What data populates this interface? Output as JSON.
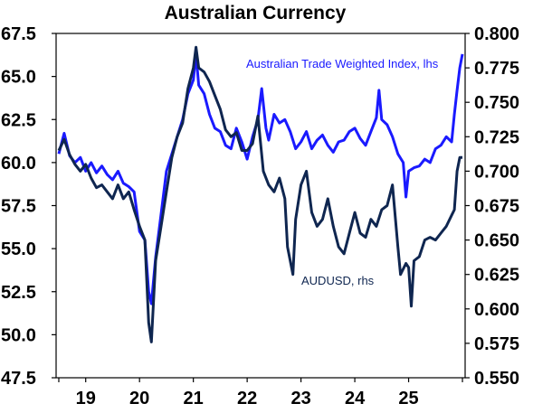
{
  "chart_data": {
    "type": "line",
    "title": "Australian Currency",
    "x_ticks": [
      "19",
      "20",
      "21",
      "22",
      "23",
      "24",
      "25"
    ],
    "y_left": {
      "min": 47.5,
      "max": 67.5,
      "ticks": [
        "47.5",
        "50.0",
        "52.5",
        "55.0",
        "57.5",
        "60.0",
        "62.5",
        "65.0",
        "67.5"
      ]
    },
    "y_right": {
      "min": 0.55,
      "max": 0.8,
      "ticks": [
        "0.550",
        "0.575",
        "0.600",
        "0.625",
        "0.650",
        "0.675",
        "0.700",
        "0.725",
        "0.750",
        "0.775",
        "0.800"
      ]
    },
    "series": [
      {
        "name": "Australian Trade Weighted Index, lhs",
        "axis": "left",
        "color": "#1a1aff",
        "points": [
          [
            2018.5,
            60.5
          ],
          [
            2018.6,
            61.7
          ],
          [
            2018.7,
            60.4
          ],
          [
            2018.8,
            60.0
          ],
          [
            2018.9,
            60.3
          ],
          [
            2019.0,
            59.5
          ],
          [
            2019.1,
            60.0
          ],
          [
            2019.2,
            59.4
          ],
          [
            2019.3,
            59.8
          ],
          [
            2019.4,
            59.3
          ],
          [
            2019.5,
            59.0
          ],
          [
            2019.6,
            59.5
          ],
          [
            2019.7,
            58.8
          ],
          [
            2019.8,
            58.6
          ],
          [
            2019.9,
            58.3
          ],
          [
            2020.0,
            56.0
          ],
          [
            2020.1,
            55.5
          ],
          [
            2020.17,
            52.5
          ],
          [
            2020.22,
            51.8
          ],
          [
            2020.3,
            54.5
          ],
          [
            2020.4,
            57.0
          ],
          [
            2020.5,
            59.5
          ],
          [
            2020.6,
            60.5
          ],
          [
            2020.7,
            61.5
          ],
          [
            2020.8,
            62.5
          ],
          [
            2020.9,
            64.0
          ],
          [
            2021.0,
            64.8
          ],
          [
            2021.05,
            66.3
          ],
          [
            2021.1,
            64.5
          ],
          [
            2021.2,
            64.0
          ],
          [
            2021.3,
            62.8
          ],
          [
            2021.4,
            62.0
          ],
          [
            2021.5,
            61.8
          ],
          [
            2021.6,
            61.0
          ],
          [
            2021.7,
            60.8
          ],
          [
            2021.8,
            62.0
          ],
          [
            2021.9,
            61.2
          ],
          [
            2022.0,
            60.2
          ],
          [
            2022.1,
            61.5
          ],
          [
            2022.2,
            62.5
          ],
          [
            2022.27,
            64.3
          ],
          [
            2022.35,
            62.0
          ],
          [
            2022.4,
            61.3
          ],
          [
            2022.5,
            62.8
          ],
          [
            2022.6,
            62.3
          ],
          [
            2022.7,
            62.5
          ],
          [
            2022.8,
            61.8
          ],
          [
            2022.9,
            60.8
          ],
          [
            2023.0,
            61.2
          ],
          [
            2023.1,
            61.8
          ],
          [
            2023.2,
            60.8
          ],
          [
            2023.3,
            61.3
          ],
          [
            2023.4,
            61.6
          ],
          [
            2023.5,
            61.0
          ],
          [
            2023.6,
            60.6
          ],
          [
            2023.7,
            61.2
          ],
          [
            2023.8,
            61.3
          ],
          [
            2023.9,
            61.8
          ],
          [
            2024.0,
            62.0
          ],
          [
            2024.1,
            61.4
          ],
          [
            2024.2,
            61.0
          ],
          [
            2024.3,
            61.8
          ],
          [
            2024.4,
            62.6
          ],
          [
            2024.45,
            64.2
          ],
          [
            2024.5,
            62.5
          ],
          [
            2024.6,
            62.2
          ],
          [
            2024.7,
            61.5
          ],
          [
            2024.8,
            60.5
          ],
          [
            2024.9,
            60.0
          ],
          [
            2024.95,
            58.0
          ],
          [
            2025.0,
            59.5
          ],
          [
            2025.1,
            59.7
          ],
          [
            2025.2,
            59.8
          ],
          [
            2025.3,
            60.2
          ],
          [
            2025.4,
            60.0
          ],
          [
            2025.5,
            60.8
          ],
          [
            2025.6,
            61.0
          ],
          [
            2025.7,
            61.5
          ],
          [
            2025.8,
            61.2
          ],
          [
            2025.85,
            62.8
          ],
          [
            2025.9,
            64.2
          ],
          [
            2025.95,
            65.5
          ],
          [
            2026.0,
            66.3
          ]
        ]
      },
      {
        "name": "AUDUSD, rhs",
        "axis": "right",
        "color": "#0f2650",
        "points": [
          [
            2018.5,
            0.715
          ],
          [
            2018.6,
            0.723
          ],
          [
            2018.7,
            0.712
          ],
          [
            2018.8,
            0.705
          ],
          [
            2018.9,
            0.7
          ],
          [
            2019.0,
            0.705
          ],
          [
            2019.1,
            0.695
          ],
          [
            2019.2,
            0.688
          ],
          [
            2019.3,
            0.69
          ],
          [
            2019.4,
            0.685
          ],
          [
            2019.5,
            0.68
          ],
          [
            2019.6,
            0.69
          ],
          [
            2019.7,
            0.68
          ],
          [
            2019.8,
            0.685
          ],
          [
            2019.9,
            0.672
          ],
          [
            2020.0,
            0.66
          ],
          [
            2020.1,
            0.65
          ],
          [
            2020.17,
            0.59
          ],
          [
            2020.22,
            0.576
          ],
          [
            2020.3,
            0.635
          ],
          [
            2020.4,
            0.66
          ],
          [
            2020.5,
            0.685
          ],
          [
            2020.6,
            0.71
          ],
          [
            2020.7,
            0.725
          ],
          [
            2020.8,
            0.735
          ],
          [
            2020.9,
            0.76
          ],
          [
            2021.0,
            0.775
          ],
          [
            2021.05,
            0.79
          ],
          [
            2021.1,
            0.775
          ],
          [
            2021.2,
            0.772
          ],
          [
            2021.3,
            0.765
          ],
          [
            2021.4,
            0.755
          ],
          [
            2021.5,
            0.745
          ],
          [
            2021.6,
            0.73
          ],
          [
            2021.7,
            0.725
          ],
          [
            2021.8,
            0.728
          ],
          [
            2021.9,
            0.715
          ],
          [
            2022.0,
            0.715
          ],
          [
            2022.1,
            0.72
          ],
          [
            2022.2,
            0.74
          ],
          [
            2022.3,
            0.7
          ],
          [
            2022.4,
            0.69
          ],
          [
            2022.5,
            0.685
          ],
          [
            2022.6,
            0.695
          ],
          [
            2022.7,
            0.68
          ],
          [
            2022.75,
            0.645
          ],
          [
            2022.8,
            0.635
          ],
          [
            2022.85,
            0.625
          ],
          [
            2022.9,
            0.665
          ],
          [
            2023.0,
            0.69
          ],
          [
            2023.1,
            0.7
          ],
          [
            2023.2,
            0.67
          ],
          [
            2023.3,
            0.66
          ],
          [
            2023.4,
            0.665
          ],
          [
            2023.5,
            0.68
          ],
          [
            2023.6,
            0.66
          ],
          [
            2023.7,
            0.645
          ],
          [
            2023.8,
            0.64
          ],
          [
            2023.9,
            0.655
          ],
          [
            2024.0,
            0.67
          ],
          [
            2024.1,
            0.655
          ],
          [
            2024.2,
            0.652
          ],
          [
            2024.3,
            0.665
          ],
          [
            2024.4,
            0.66
          ],
          [
            2024.5,
            0.672
          ],
          [
            2024.6,
            0.675
          ],
          [
            2024.7,
            0.69
          ],
          [
            2024.8,
            0.645
          ],
          [
            2024.85,
            0.625
          ],
          [
            2024.95,
            0.633
          ],
          [
            2025.0,
            0.63
          ],
          [
            2025.05,
            0.602
          ],
          [
            2025.1,
            0.635
          ],
          [
            2025.2,
            0.638
          ],
          [
            2025.3,
            0.65
          ],
          [
            2025.4,
            0.652
          ],
          [
            2025.5,
            0.65
          ],
          [
            2025.6,
            0.655
          ],
          [
            2025.7,
            0.66
          ],
          [
            2025.8,
            0.668
          ],
          [
            2025.85,
            0.672
          ],
          [
            2025.9,
            0.7
          ],
          [
            2025.95,
            0.71
          ],
          [
            2026.0,
            0.71
          ]
        ]
      }
    ]
  }
}
